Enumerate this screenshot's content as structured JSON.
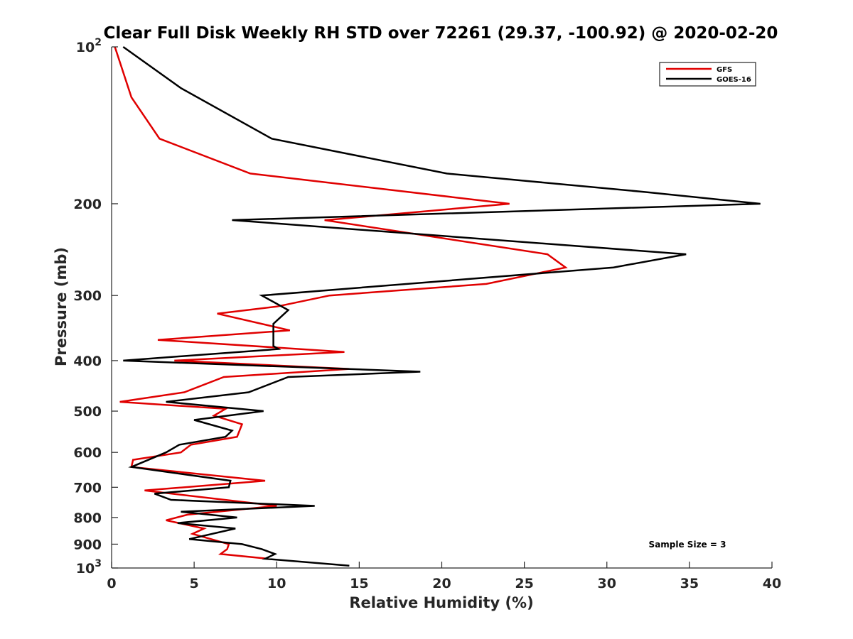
{
  "chart_data": {
    "type": "line",
    "title": "Clear Full Disk Weekly RH STD over 72261 (29.37, -100.92) @ 2020-02-20",
    "xlabel": "Relative Humidity (%)",
    "ylabel": "Pressure (mb)",
    "xlim": [
      0,
      40
    ],
    "ylim": [
      100,
      1000
    ],
    "y_scale": "log",
    "y_reversed": true,
    "x_ticks": [
      0,
      5,
      10,
      15,
      20,
      25,
      30,
      35,
      40
    ],
    "y_ticks": [
      {
        "value": 100,
        "base": "10",
        "exp": "2"
      },
      {
        "value": 200,
        "label": "200"
      },
      {
        "value": 300,
        "label": "300"
      },
      {
        "value": 400,
        "label": "400"
      },
      {
        "value": 500,
        "label": "500"
      },
      {
        "value": 600,
        "label": "600"
      },
      {
        "value": 700,
        "label": "700"
      },
      {
        "value": 800,
        "label": "800"
      },
      {
        "value": 900,
        "label": "900"
      },
      {
        "value": 1000,
        "base": "10",
        "exp": "3"
      }
    ],
    "grid": false,
    "legend_position": "top-right",
    "annotation": "Sample Size = 3",
    "series": [
      {
        "name": "GFS",
        "color": "#e00000",
        "points": [
          [
            0.2,
            100
          ],
          [
            1.2,
            125
          ],
          [
            2.9,
            150
          ],
          [
            8.4,
            175
          ],
          [
            24.1,
            200
          ],
          [
            13,
            215
          ],
          [
            12.9,
            215
          ],
          [
            26.4,
            250
          ],
          [
            27.5,
            265
          ],
          [
            22.7,
            285
          ],
          [
            13.2,
            300
          ],
          [
            10,
            315
          ],
          [
            6.4,
            325
          ],
          [
            10.8,
            350
          ],
          [
            2.8,
            365
          ],
          [
            14.1,
            385
          ],
          [
            3.8,
            400
          ],
          [
            14.4,
            415
          ],
          [
            6.8,
            430
          ],
          [
            4.4,
            460
          ],
          [
            0.5,
            480
          ],
          [
            6.9,
            495
          ],
          [
            6.2,
            510
          ],
          [
            7.9,
            530
          ],
          [
            7.6,
            560
          ],
          [
            4.8,
            580
          ],
          [
            4.2,
            600
          ],
          [
            1.3,
            620
          ],
          [
            1.2,
            640
          ],
          [
            9.3,
            680
          ],
          [
            2,
            710
          ],
          [
            10,
            760
          ],
          [
            4.6,
            790
          ],
          [
            3.3,
            810
          ],
          [
            5.6,
            840
          ],
          [
            4.9,
            860
          ],
          [
            7.1,
            900
          ],
          [
            7,
            920
          ],
          [
            6.6,
            940
          ],
          [
            9.5,
            960
          ]
        ]
      },
      {
        "name": "GOES-16",
        "color": "#000000",
        "points": [
          [
            0.7,
            100
          ],
          [
            4.2,
            120
          ],
          [
            9.7,
            150
          ],
          [
            20.3,
            175
          ],
          [
            32.4,
            190
          ],
          [
            39.3,
            200
          ],
          [
            7.3,
            215
          ],
          [
            34.8,
            250
          ],
          [
            30.4,
            265
          ],
          [
            9.1,
            300
          ],
          [
            10.7,
            320
          ],
          [
            9.8,
            340
          ],
          [
            9.8,
            375
          ],
          [
            10.1,
            380
          ],
          [
            0.7,
            400
          ],
          [
            18.7,
            420
          ],
          [
            10.7,
            430
          ],
          [
            8.3,
            460
          ],
          [
            3.3,
            480
          ],
          [
            9.2,
            500
          ],
          [
            5,
            520
          ],
          [
            7.3,
            545
          ],
          [
            6.9,
            560
          ],
          [
            4.1,
            580
          ],
          [
            3.3,
            600
          ],
          [
            1.2,
            640
          ],
          [
            7.2,
            680
          ],
          [
            7.1,
            700
          ],
          [
            2.6,
            720
          ],
          [
            3.6,
            740
          ],
          [
            12.3,
            760
          ],
          [
            4.2,
            780
          ],
          [
            7.6,
            800
          ],
          [
            4,
            820
          ],
          [
            7.5,
            840
          ],
          [
            4.7,
            880
          ],
          [
            7.9,
            900
          ],
          [
            9.1,
            920
          ],
          [
            9.9,
            940
          ],
          [
            9.3,
            960
          ],
          [
            14.4,
            990
          ]
        ]
      }
    ]
  }
}
